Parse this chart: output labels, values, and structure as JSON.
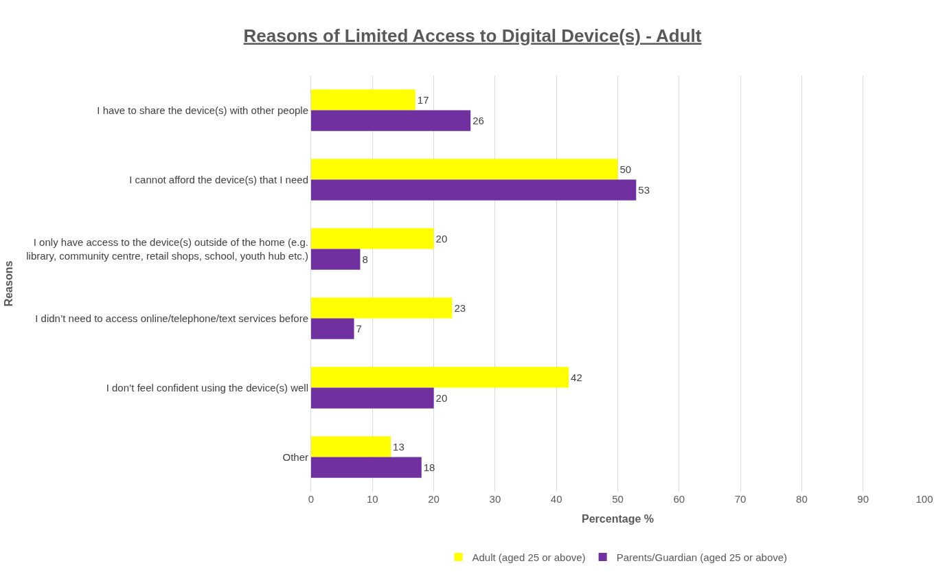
{
  "chart_data": {
    "type": "bar",
    "orientation": "horizontal",
    "title": "Reasons of Limited Access to Digital Device(s) - Adult",
    "xlabel": "Percentage %",
    "ylabel": "Reasons",
    "categories": [
      "I have to share the device(s) with other people",
      "I cannot afford the device(s) that I need",
      "I only have access to the device(s) outside of the home (e.g.\nlibrary, community centre, retail shops, school, youth hub etc.)",
      "I didn’t need to access online/telephone/text services before",
      "I don’t feel confident using the device(s) well",
      "Other"
    ],
    "series": [
      {
        "name": "Adult (aged 25 or above)",
        "color": "#ffff00",
        "values": [
          17,
          50,
          20,
          23,
          42,
          13
        ]
      },
      {
        "name": "Parents/Guardian (aged 25 or above)",
        "color": "#7030a0",
        "values": [
          26,
          53,
          8,
          7,
          20,
          18
        ]
      }
    ],
    "xlim": [
      0,
      100
    ],
    "xticks": [
      0,
      10,
      20,
      30,
      40,
      50,
      60,
      70,
      80,
      90,
      100
    ],
    "grid": "x",
    "legend": "bottom",
    "data_labels": true
  }
}
